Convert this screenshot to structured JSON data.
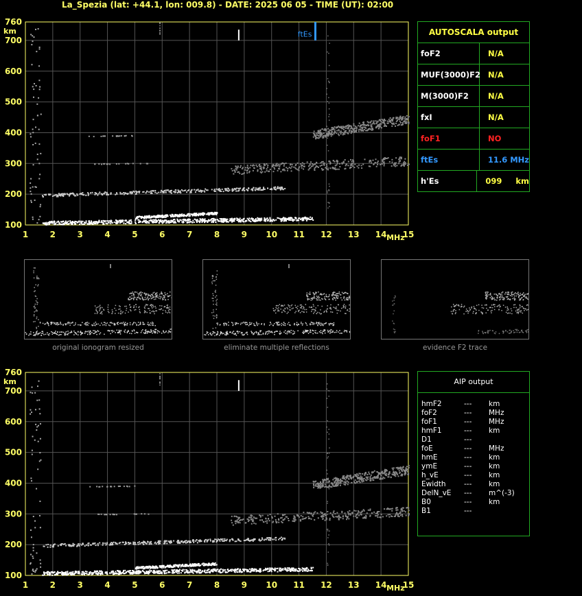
{
  "header": "La_Spezia (lat: +44.1, lon: 009.8) - DATE: 2025 06 05 - TIME (UT): 02:00",
  "colors": {
    "axis": "#ffff66",
    "grid": "#555555",
    "trace": "#ffffff",
    "trace_dim": "#888888",
    "ftes": "#3399ff",
    "foF1": "#ff2222",
    "table_border": "#22aa22",
    "table_label": "#ffffff",
    "table_value": "#ffff44"
  },
  "chart_data": [
    {
      "type": "scatter",
      "name": "ionogram-main",
      "xlabel": "MHz",
      "ylabel": "km",
      "xlim": [
        1,
        15
      ],
      "ylim": [
        100,
        760
      ],
      "x_ticks": [
        1,
        2,
        3,
        4,
        5,
        6,
        7,
        8,
        9,
        10,
        11,
        12,
        13,
        14,
        15
      ],
      "y_ticks": [
        100,
        200,
        300,
        400,
        500,
        600,
        700,
        760
      ],
      "grid": true,
      "marker": {
        "label": "ftEs",
        "x": 11.6
      },
      "traces": [
        {
          "layer": "E",
          "x0": 1.6,
          "x1": 11.5,
          "h0": 108,
          "h1": 125
        },
        {
          "layer": "E-2nd",
          "x0": 5.0,
          "x1": 8.0,
          "h0": 128,
          "h1": 140
        },
        {
          "layer": "F-low",
          "x0": 1.6,
          "x1": 10.5,
          "h0": 200,
          "h1": 220
        },
        {
          "layer": "F-mid",
          "x0": 8.5,
          "x1": 15,
          "h0": 290,
          "h1": 300
        },
        {
          "layer": "F-high",
          "x0": 11.5,
          "x1": 15,
          "h0": 400,
          "h1": 440
        }
      ]
    },
    {
      "type": "scatter",
      "name": "ionogram-aip",
      "xlabel": "MHz",
      "ylabel": "km",
      "xlim": [
        1,
        15
      ],
      "ylim": [
        100,
        760
      ],
      "x_ticks": [
        1,
        2,
        3,
        4,
        5,
        6,
        7,
        8,
        9,
        10,
        11,
        12,
        13,
        14,
        15
      ],
      "y_ticks": [
        100,
        200,
        300,
        400,
        500,
        600,
        700,
        760
      ],
      "grid": true
    }
  ],
  "autoscala": {
    "title": "AUTOSCALA output",
    "rows": [
      {
        "key": "foF2",
        "value": "N/A",
        "kcolor": "#ffffff",
        "vcolor": "#ffff44"
      },
      {
        "key": "MUF(3000)F2",
        "value": "N/A",
        "kcolor": "#ffffff",
        "vcolor": "#ffff44"
      },
      {
        "key": "M(3000)F2",
        "value": "N/A",
        "kcolor": "#ffffff",
        "vcolor": "#ffff44"
      },
      {
        "key": "fxI",
        "value": "N/A",
        "kcolor": "#ffffff",
        "vcolor": "#ffff44"
      },
      {
        "key": "foF1",
        "value": "NO",
        "kcolor": "#ff2222",
        "vcolor": "#ff2222"
      },
      {
        "key": "ftEs",
        "value": "11.6 MHz",
        "kcolor": "#3399ff",
        "vcolor": "#3399ff"
      },
      {
        "key": "h'Es",
        "value": "099     km",
        "kcolor": "#ffffff",
        "vcolor": "#ffff44"
      }
    ]
  },
  "aip": {
    "title": "AIP output",
    "rows": [
      {
        "k": "hmF2",
        "v": "---",
        "u": "km"
      },
      {
        "k": "foF2",
        "v": "---",
        "u": "MHz"
      },
      {
        "k": "foF1",
        "v": "---",
        "u": "MHz"
      },
      {
        "k": "hmF1",
        "v": "---",
        "u": "km"
      },
      {
        "k": "D1",
        "v": "---",
        "u": ""
      },
      {
        "k": "foE",
        "v": "---",
        "u": "MHz"
      },
      {
        "k": "hmE",
        "v": "---",
        "u": "km"
      },
      {
        "k": "ymE",
        "v": "---",
        "u": "km"
      },
      {
        "k": "h_vE",
        "v": "---",
        "u": "km"
      },
      {
        "k": "Ewidth",
        "v": "---",
        "u": "km"
      },
      {
        "k": "DelN_vE",
        "v": "---",
        "u": "m^(-3)"
      },
      {
        "k": "B0",
        "v": "---",
        "u": "km"
      },
      {
        "k": "B1",
        "v": "---",
        "u": ""
      }
    ]
  },
  "thumbnails": [
    {
      "caption": "original ionogram resized"
    },
    {
      "caption": "eliminate multiple reflections"
    },
    {
      "caption": "evidence F2 trace"
    }
  ]
}
